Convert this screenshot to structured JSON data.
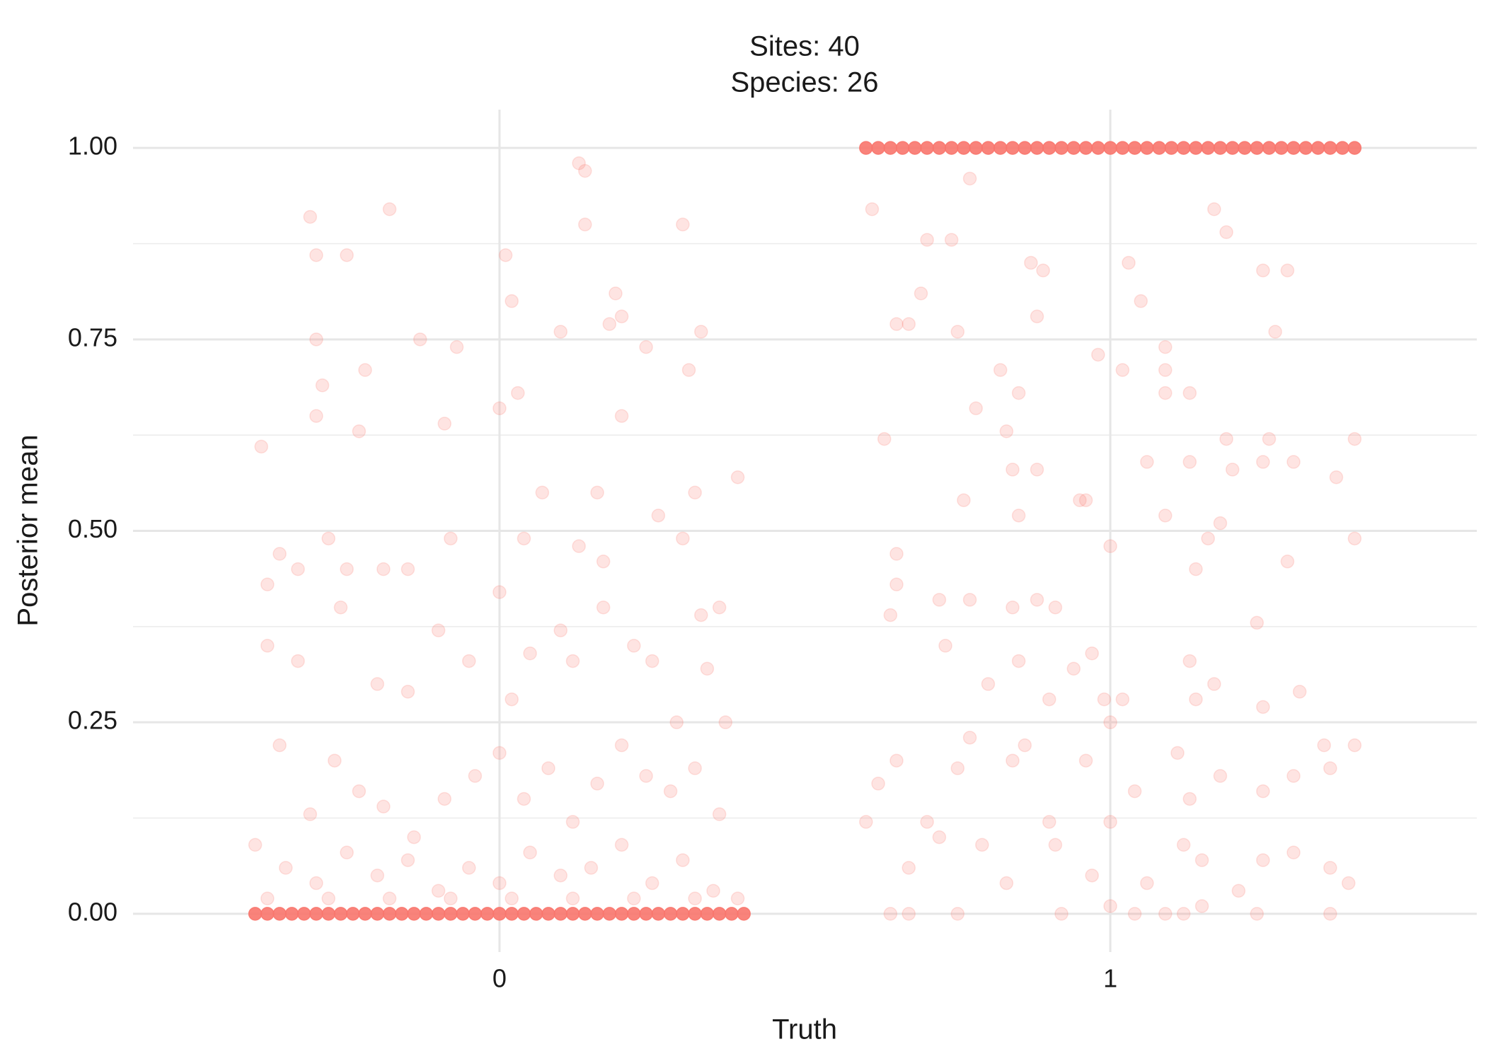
{
  "chart_data": {
    "type": "scatter",
    "title_lines": [
      "Sites: 40",
      "Species: 26"
    ],
    "xlabel": "Truth",
    "ylabel": "Posterior mean",
    "xlim": [
      -0.6,
      1.6
    ],
    "ylim": [
      -0.05,
      1.05
    ],
    "xticks": [
      0,
      1
    ],
    "yticks": [
      {
        "value": 0,
        "label": "0.00"
      },
      {
        "value": 0.25,
        "label": "0.25"
      },
      {
        "value": 0.5,
        "label": "0.50"
      },
      {
        "value": 0.75,
        "label": "0.75"
      },
      {
        "value": 1,
        "label": "1.00"
      }
    ],
    "yminor": [
      0.125,
      0.375,
      0.625,
      0.875
    ],
    "grid": true,
    "series": [
      {
        "color": "#f8766d",
        "alpha": 0.2,
        "x": [
          -0.39,
          -0.31,
          -0.3,
          -0.25,
          -0.18,
          -0.13,
          -0.07,
          0.02,
          0.01,
          0.13,
          0.14,
          0.14,
          0.3,
          0.19,
          0.2,
          0.18,
          0.24,
          0.33,
          0.31,
          0.1,
          -0.3,
          -0.29,
          -0.22,
          -0.23,
          -0.3,
          -0.38,
          -0.36,
          -0.33,
          -0.28,
          -0.25,
          -0.19,
          -0.15,
          -0.09,
          -0.08,
          0.0,
          0.03,
          0.04,
          0.07,
          0.13,
          0.16,
          0.17,
          0.2,
          0.26,
          0.3,
          0.32,
          0.39,
          0.36,
          0.33,
          -0.38,
          -0.33,
          -0.26,
          -0.2,
          -0.15,
          -0.1,
          -0.05,
          0.0,
          0.02,
          0.05,
          0.1,
          0.12,
          0.17,
          0.22,
          0.25,
          0.29,
          0.34,
          0.37,
          -0.36,
          -0.31,
          -0.27,
          -0.23,
          -0.19,
          -0.14,
          -0.09,
          -0.04,
          0.0,
          0.04,
          0.08,
          0.12,
          0.16,
          0.2,
          0.24,
          0.28,
          0.32,
          0.36,
          -0.4,
          -0.35,
          -0.3,
          -0.25,
          -0.2,
          -0.15,
          -0.1,
          -0.05,
          0.0,
          0.05,
          0.1,
          0.15,
          0.2,
          0.25,
          0.3,
          0.35,
          0.39,
          -0.38,
          -0.28,
          -0.18,
          -0.08,
          0.02,
          0.12,
          0.22,
          0.32
        ],
        "values": [
          0.61,
          0.91,
          0.86,
          0.86,
          0.92,
          0.75,
          0.74,
          0.8,
          0.86,
          0.98,
          0.97,
          0.9,
          0.9,
          0.81,
          0.78,
          0.77,
          0.74,
          0.76,
          0.71,
          0.76,
          0.75,
          0.69,
          0.71,
          0.63,
          0.65,
          0.43,
          0.47,
          0.45,
          0.49,
          0.45,
          0.45,
          0.45,
          0.64,
          0.49,
          0.66,
          0.68,
          0.49,
          0.55,
          0.48,
          0.55,
          0.46,
          0.65,
          0.52,
          0.49,
          0.55,
          0.57,
          0.4,
          0.39,
          0.35,
          0.33,
          0.4,
          0.3,
          0.29,
          0.37,
          0.33,
          0.42,
          0.28,
          0.34,
          0.37,
          0.33,
          0.4,
          0.35,
          0.33,
          0.25,
          0.32,
          0.25,
          0.22,
          0.13,
          0.2,
          0.16,
          0.14,
          0.1,
          0.15,
          0.18,
          0.21,
          0.15,
          0.19,
          0.12,
          0.17,
          0.22,
          0.18,
          0.16,
          0.19,
          0.13,
          0.09,
          0.06,
          0.04,
          0.08,
          0.05,
          0.07,
          0.03,
          0.06,
          0.04,
          0.08,
          0.05,
          0.06,
          0.09,
          0.04,
          0.07,
          0.03,
          0.02,
          0.02,
          0.02,
          0.02,
          0.02,
          0.02,
          0.02,
          0.02,
          0.02
        ]
      },
      {
        "color": "#f8766d",
        "alpha": 0.2,
        "x": [
          0.61,
          0.77,
          0.7,
          0.74,
          0.87,
          0.89,
          0.88,
          1.03,
          1.05,
          1.17,
          1.19,
          1.25,
          1.29,
          1.27,
          0.69,
          0.65,
          0.67,
          0.75,
          0.82,
          0.85,
          0.98,
          1.02,
          1.09,
          1.09,
          1.09,
          1.13,
          0.63,
          0.78,
          0.83,
          0.84,
          0.88,
          0.76,
          0.85,
          0.95,
          0.96,
          1.06,
          1.13,
          1.19,
          1.2,
          1.25,
          1.26,
          1.3,
          1.37,
          1.4,
          1.4,
          1.09,
          1.16,
          0.65,
          0.65,
          0.64,
          0.72,
          0.77,
          0.84,
          0.88,
          0.91,
          1.0,
          1.14,
          1.18,
          1.29,
          1.24,
          0.73,
          0.8,
          0.85,
          0.94,
          0.97,
          0.99,
          1.02,
          0.9,
          1.13,
          1.17,
          1.14,
          1.25,
          1.31,
          0.62,
          0.65,
          0.7,
          0.75,
          0.77,
          0.84,
          0.86,
          0.9,
          0.96,
          1.0,
          1.04,
          1.11,
          1.13,
          1.18,
          1.25,
          1.3,
          1.35,
          1.36,
          1.4,
          0.6,
          0.67,
          0.72,
          0.79,
          0.83,
          0.91,
          0.97,
          1.0,
          1.06,
          1.12,
          1.15,
          1.21,
          1.25,
          1.3,
          1.36,
          1.39,
          0.64,
          0.67,
          0.75,
          0.92,
          1.0,
          1.04,
          1.09,
          1.12,
          1.15,
          1.24,
          1.36
        ],
        "values": [
          0.92,
          0.96,
          0.88,
          0.88,
          0.85,
          0.84,
          0.78,
          0.85,
          0.8,
          0.92,
          0.89,
          0.84,
          0.84,
          0.76,
          0.81,
          0.77,
          0.77,
          0.76,
          0.71,
          0.68,
          0.73,
          0.71,
          0.74,
          0.71,
          0.68,
          0.68,
          0.62,
          0.66,
          0.63,
          0.58,
          0.58,
          0.54,
          0.52,
          0.54,
          0.54,
          0.59,
          0.59,
          0.62,
          0.58,
          0.59,
          0.62,
          0.59,
          0.57,
          0.62,
          0.49,
          0.52,
          0.49,
          0.47,
          0.43,
          0.39,
          0.41,
          0.41,
          0.4,
          0.41,
          0.4,
          0.48,
          0.45,
          0.51,
          0.46,
          0.38,
          0.35,
          0.3,
          0.33,
          0.32,
          0.34,
          0.28,
          0.28,
          0.28,
          0.33,
          0.3,
          0.28,
          0.27,
          0.29,
          0.17,
          0.2,
          0.12,
          0.19,
          0.23,
          0.2,
          0.22,
          0.12,
          0.2,
          0.25,
          0.16,
          0.21,
          0.15,
          0.18,
          0.16,
          0.18,
          0.22,
          0.19,
          0.22,
          0.12,
          0.06,
          0.1,
          0.09,
          0.04,
          0.09,
          0.05,
          0.12,
          0.04,
          0.09,
          0.07,
          0.03,
          0.07,
          0.08,
          0.06,
          0.04,
          0.0,
          0.0,
          0.0,
          0.0,
          0.01,
          0.0,
          0.0,
          0.0,
          0.01,
          0.0,
          0.0
        ]
      },
      {
        "color": "#f8766d",
        "alpha": 0.9,
        "x": [
          -0.4,
          -0.38,
          -0.36,
          -0.34,
          -0.32,
          -0.3,
          -0.28,
          -0.26,
          -0.24,
          -0.22,
          -0.2,
          -0.18,
          -0.16,
          -0.14,
          -0.12,
          -0.1,
          -0.08,
          -0.06,
          -0.04,
          -0.02,
          0.0,
          0.02,
          0.04,
          0.06,
          0.08,
          0.1,
          0.12,
          0.14,
          0.16,
          0.18,
          0.2,
          0.22,
          0.24,
          0.26,
          0.28,
          0.3,
          0.32,
          0.34,
          0.36,
          0.38,
          0.4
        ],
        "values": [
          0,
          0,
          0,
          0,
          0,
          0,
          0,
          0,
          0,
          0,
          0,
          0,
          0,
          0,
          0,
          0,
          0,
          0,
          0,
          0,
          0,
          0,
          0,
          0,
          0,
          0,
          0,
          0,
          0,
          0,
          0,
          0,
          0,
          0,
          0,
          0,
          0,
          0,
          0,
          0,
          0
        ]
      },
      {
        "color": "#f8766d",
        "alpha": 0.9,
        "x": [
          0.6,
          0.62,
          0.64,
          0.66,
          0.68,
          0.7,
          0.72,
          0.74,
          0.76,
          0.78,
          0.8,
          0.82,
          0.84,
          0.86,
          0.88,
          0.9,
          0.92,
          0.94,
          0.96,
          0.98,
          1.0,
          1.02,
          1.04,
          1.06,
          1.08,
          1.1,
          1.12,
          1.14,
          1.16,
          1.18,
          1.2,
          1.22,
          1.24,
          1.26,
          1.28,
          1.3,
          1.32,
          1.34,
          1.36,
          1.38,
          1.4
        ],
        "values": [
          1,
          1,
          1,
          1,
          1,
          1,
          1,
          1,
          1,
          1,
          1,
          1,
          1,
          1,
          1,
          1,
          1,
          1,
          1,
          1,
          1,
          1,
          1,
          1,
          1,
          1,
          1,
          1,
          1,
          1,
          1,
          1,
          1,
          1,
          1,
          1,
          1,
          1,
          1,
          1,
          1
        ]
      }
    ]
  }
}
